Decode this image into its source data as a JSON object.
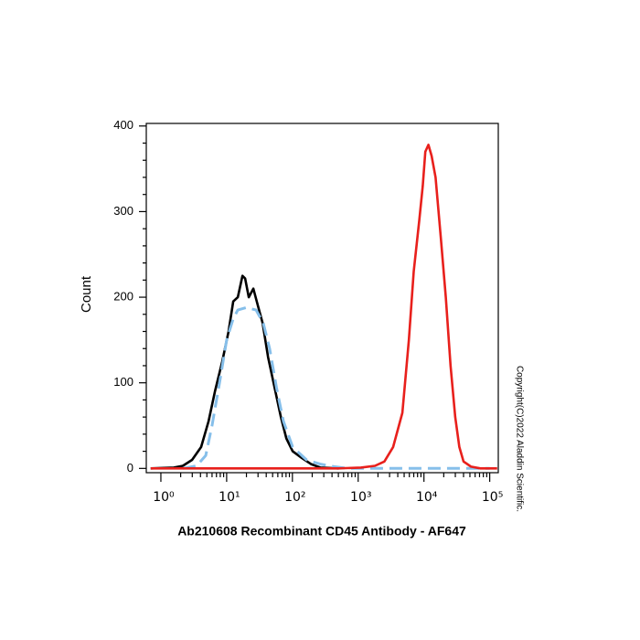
{
  "chart_data": {
    "type": "line",
    "title": "Ab210608 Recombinant CD45 Antibody - AF647",
    "y_label": "Count",
    "copyright": "Copyright(C)2022 Aladdin Scientific.",
    "x_scale": "log",
    "xlim": [
      0.6,
      135000
    ],
    "ylim": [
      -5,
      403
    ],
    "xticks": [
      {
        "value": 1,
        "label": "10⁰"
      },
      {
        "value": 10,
        "label": "10¹"
      },
      {
        "value": 100,
        "label": "10²"
      },
      {
        "value": 1000,
        "label": "10³"
      },
      {
        "value": 10000,
        "label": "10⁴"
      },
      {
        "value": 100000,
        "label": "10⁵"
      }
    ],
    "xminorticks": [
      2,
      3,
      4,
      5,
      6,
      7,
      8,
      9,
      20,
      30,
      40,
      50,
      60,
      70,
      80,
      90,
      200,
      300,
      400,
      500,
      600,
      700,
      800,
      900,
      2000,
      3000,
      4000,
      5000,
      6000,
      7000,
      8000,
      9000,
      20000,
      30000,
      40000,
      50000,
      60000,
      70000,
      80000,
      90000
    ],
    "yticks": [
      0,
      100,
      200,
      300,
      400
    ],
    "yminorticks": [
      20,
      40,
      60,
      80,
      120,
      140,
      160,
      180,
      220,
      240,
      260,
      280,
      320,
      340,
      360,
      380
    ],
    "series": [
      {
        "color": "#000000",
        "dash": false,
        "x": [
          0.7,
          1.57,
          2.16,
          2.98,
          4.1,
          5.3,
          6.63,
          8.57,
          10.7,
          12.6,
          14.8,
          17.4,
          19.1,
          21.7,
          25.5,
          29.9,
          35.2,
          42.6,
          53.4,
          66.8,
          81,
          101,
          140,
          192,
          265,
          504
        ],
        "values": [
          0,
          1,
          3,
          10,
          25,
          55,
          90,
          125,
          160,
          195,
          200,
          225,
          222,
          200,
          210,
          190,
          170,
          130,
          95,
          60,
          35,
          20,
          12,
          5,
          1,
          0
        ]
      },
      {
        "color": "#86bfea",
        "dash": true,
        "x": [
          2.16,
          3.5,
          4.8,
          6.0,
          7.8,
          10,
          12.6,
          14.8,
          20,
          28,
          36,
          45,
          57,
          73,
          101,
          164,
          265,
          430,
          690,
          2000,
          10000,
          50000,
          100000
        ],
        "values": [
          0,
          3,
          15,
          50,
          100,
          150,
          175,
          185,
          188,
          185,
          170,
          140,
          95,
          55,
          25,
          10,
          5,
          2,
          0,
          0,
          0,
          0,
          0
        ]
      },
      {
        "color": "#e8201c",
        "dash": false,
        "x": [
          0.7,
          100,
          500,
          1100,
          1800,
          2500,
          3400,
          4700,
          5900,
          7000,
          8500,
          9600,
          10500,
          11700,
          13100,
          15000,
          18000,
          21500,
          25400,
          29900,
          34500,
          40000,
          52000,
          72000,
          130000
        ],
        "values": [
          0,
          0,
          0,
          1,
          3,
          8,
          25,
          65,
          150,
          230,
          290,
          330,
          370,
          378,
          365,
          340,
          270,
          200,
          120,
          60,
          25,
          8,
          2,
          0,
          0
        ]
      }
    ]
  }
}
